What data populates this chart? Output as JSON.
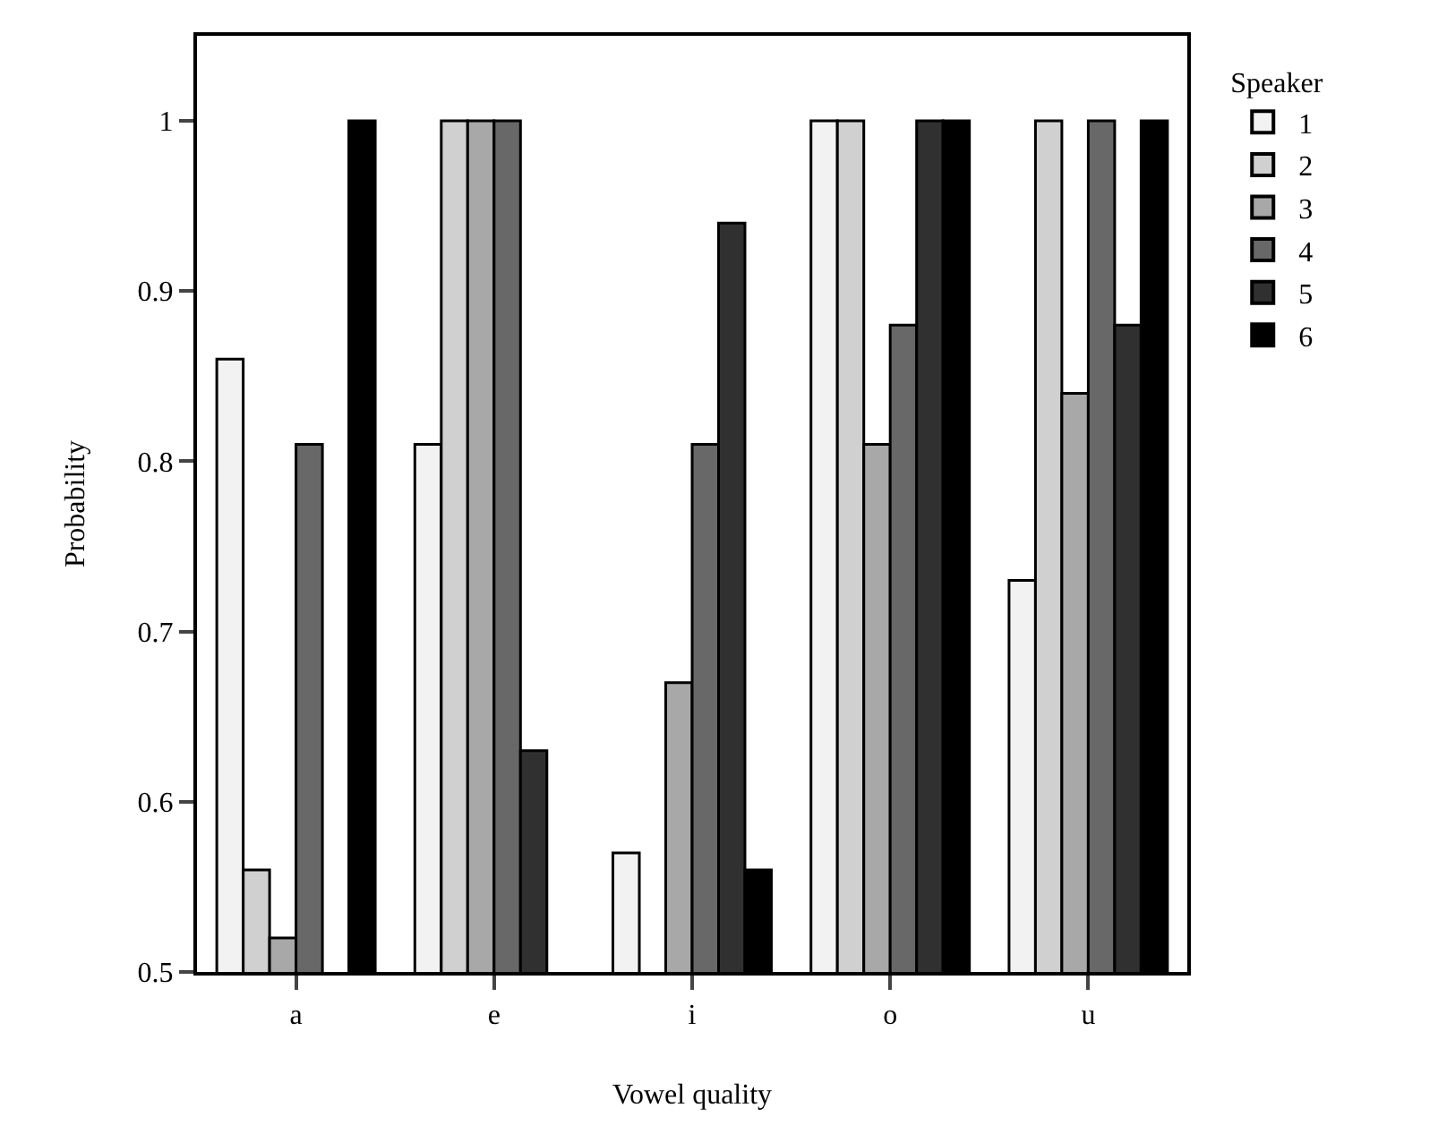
{
  "chart_data": {
    "type": "bar",
    "xlabel": "Vowel quality",
    "ylabel": "Probability",
    "legend_title": "Speaker",
    "categories": [
      "a",
      "e",
      "i",
      "o",
      "u"
    ],
    "series": [
      {
        "name": "1",
        "color": "#f2f2f2",
        "values": [
          0.86,
          0.81,
          0.57,
          1,
          0.73
        ]
      },
      {
        "name": "2",
        "color": "#d0d0d0",
        "values": [
          0.56,
          1,
          null,
          1,
          1
        ]
      },
      {
        "name": "3",
        "color": "#a8a8a8",
        "values": [
          0.52,
          1,
          0.67,
          0.81,
          0.84
        ]
      },
      {
        "name": "4",
        "color": "#686868",
        "values": [
          0.81,
          1,
          0.81,
          0.88,
          1
        ]
      },
      {
        "name": "5",
        "color": "#303030",
        "values": [
          null,
          0.63,
          0.94,
          1,
          0.88
        ]
      },
      {
        "name": "6",
        "color": "#000000",
        "values": [
          1,
          null,
          0.56,
          1,
          1
        ]
      }
    ],
    "ylim": [
      0.5,
      1.05
    ],
    "yticks": [
      0.5,
      0.6,
      0.7,
      0.8,
      0.9,
      1
    ],
    "grid": false,
    "legend": "right"
  }
}
